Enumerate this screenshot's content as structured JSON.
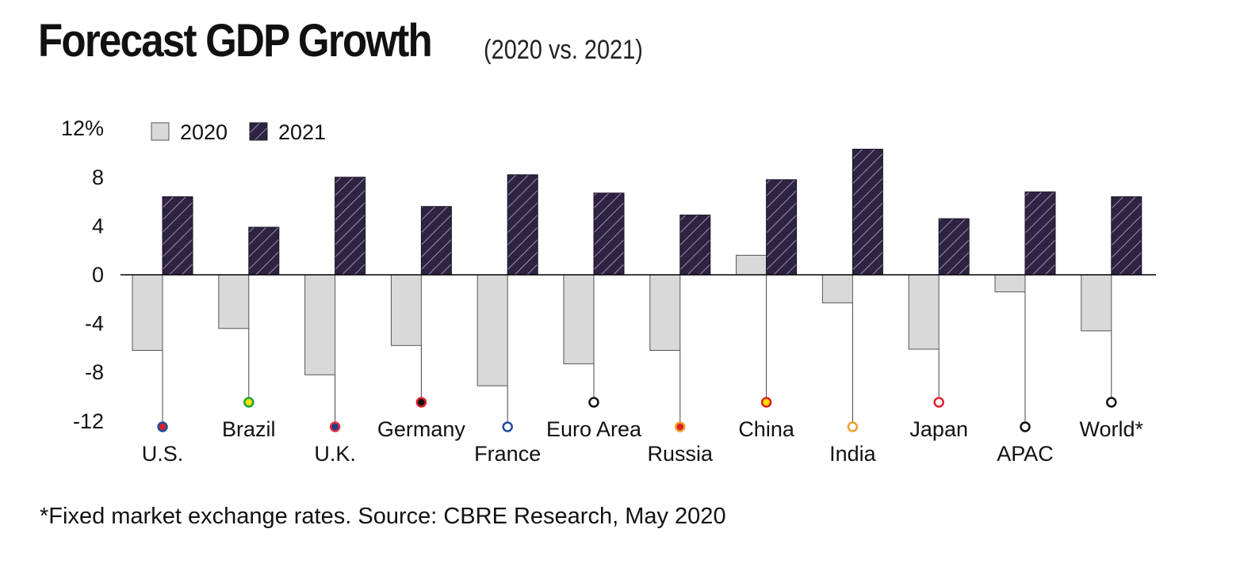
{
  "title": "Forecast GDP Growth",
  "subtitle": "(2020 vs. 2021)",
  "footnote": "*Fixed market exchange rates. Source: CBRE Research, May 2020",
  "colors": {
    "bar_2020": "#d9d9d9",
    "bar_2020_stroke": "#555555",
    "bar_2021": "#2e2340",
    "bar_2021_hatch": "#b9a9d6"
  },
  "chart_data": {
    "type": "bar",
    "ylabel": "",
    "xlabel": "",
    "ylim": [
      -12,
      12
    ],
    "yticks": [
      12,
      8,
      4,
      0,
      -4,
      -8,
      -12
    ],
    "ytick_labels": [
      "12%",
      "8",
      "4",
      "0",
      "-4",
      "-8",
      "-12"
    ],
    "legend_position": "top-left",
    "categories": [
      "U.S.",
      "Brazil",
      "U.K.",
      "Germany",
      "France",
      "Euro Area",
      "Russia",
      "China",
      "India",
      "Japan",
      "APAC",
      "World*"
    ],
    "series": [
      {
        "name": "2020",
        "values": [
          -6.2,
          -4.4,
          -8.2,
          -5.8,
          -9.1,
          -7.3,
          -6.2,
          1.6,
          -2.3,
          -6.1,
          -1.4,
          -4.6
        ]
      },
      {
        "name": "2021",
        "values": [
          6.4,
          3.9,
          8.0,
          5.6,
          8.2,
          6.7,
          4.9,
          7.8,
          10.3,
          4.6,
          6.8,
          6.4
        ]
      }
    ],
    "marker_colors": [
      {
        "ring": "#1f4e9e",
        "fill": "#d62030"
      },
      {
        "ring": "#1aa33a",
        "fill": "#ffe100"
      },
      {
        "ring": "#e03040",
        "fill": "#1f3d8a"
      },
      {
        "ring": "#e0202a",
        "fill": "#111111"
      },
      {
        "ring": "#1f4e9e",
        "fill": "#ffffff"
      },
      {
        "ring": "#111111",
        "fill": "#ffffff"
      },
      {
        "ring": "#f0a030",
        "fill": "#e02020"
      },
      {
        "ring": "#e02020",
        "fill": "#ffe100"
      },
      {
        "ring": "#f0a030",
        "fill": "#ffffff"
      },
      {
        "ring": "#e02030",
        "fill": "#ffffff"
      },
      {
        "ring": "#111111",
        "fill": "#ffffff"
      },
      {
        "ring": "#111111",
        "fill": "#ffffff"
      }
    ]
  }
}
